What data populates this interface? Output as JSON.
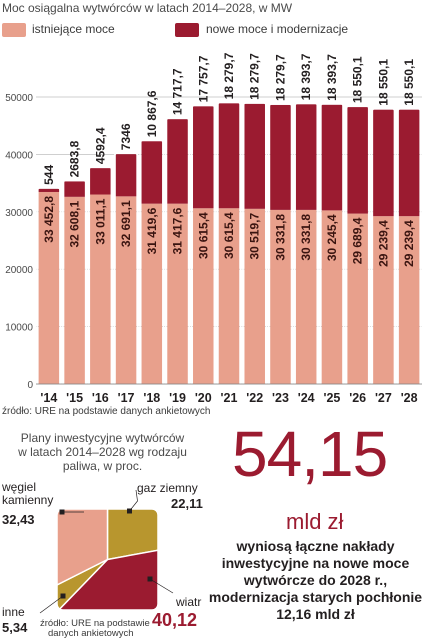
{
  "chart_data": [
    {
      "type": "bar",
      "title": "Moc osiągalna wytwórców w latach 2014–2028, w MW",
      "categories": [
        "'14",
        "'15",
        "'16",
        "'17",
        "'18",
        "'19",
        "'20",
        "'21",
        "'22",
        "'23",
        "'24",
        "'25",
        "'26",
        "'27",
        "'28"
      ],
      "series": [
        {
          "name": "istniejące moce",
          "color": "#e8a08c",
          "values": [
            33452.8,
            32608.1,
            33011.1,
            32691.1,
            31419.6,
            31417.6,
            30615.4,
            30615.4,
            30519.7,
            30331.8,
            30331.8,
            30245.4,
            29689.4,
            29239.4,
            29239.4
          ],
          "labels": [
            "33 452,8",
            "32 608,1",
            "33 011,1",
            "32 691,1",
            "31 419,6",
            "31 417,6",
            "30 615,4",
            "30 615,4",
            "30 519,7",
            "30 331,8",
            "30 331,8",
            "30 245,4",
            "29 689,4",
            "29 239,4",
            "29 239,4"
          ]
        },
        {
          "name": "nowe moce i modernizacje",
          "color": "#9b1b30",
          "values": [
            544,
            2683.8,
            4592.4,
            7346,
            10867.6,
            14717.7,
            17757.7,
            18279.7,
            18279.7,
            18279.7,
            18393.7,
            18393.7,
            18550.1,
            18550.1,
            18550.1
          ],
          "labels": [
            "544",
            "2683,8",
            "4592,4",
            "7346",
            "10 867,6",
            "14 717,7",
            "17 757,7",
            "18 279,7",
            "18 279,7",
            "18 279,7",
            "18 393,7",
            "18 393,7",
            "18 550,1",
            "18 550,1",
            "18 550,1"
          ]
        }
      ],
      "yticks": [
        "0",
        "10000",
        "20000",
        "30000",
        "40000",
        "50000"
      ],
      "ylim": [
        0,
        50000
      ],
      "grid": true,
      "legend_position": "top"
    },
    {
      "type": "pie",
      "title": "Plany inwestycyjne wytwórców w latach 2014–2028 wg rodzaju paliwa, w proc.",
      "slices": [
        {
          "label": "gaz ziemny",
          "value": 22.11,
          "value_label": "22,11",
          "color": "#b8962e"
        },
        {
          "label": "wiatr",
          "value": 40.12,
          "value_label": "40,12",
          "color": "#9b1b30"
        },
        {
          "label": "inne",
          "value": 5.34,
          "value_label": "5,34",
          "color": "#b8962e"
        },
        {
          "label": "węgiel kamienny",
          "value": 32.43,
          "value_label": "32,43",
          "color": "#e8a08c"
        }
      ]
    }
  ],
  "source_bar": "źródło: URE na podstawie danych ankietowych",
  "source_pie_1": "źródło: URE na podstawie",
  "source_pie_2": "danych ankietowych",
  "highlight": {
    "value": "54,15",
    "unit": "mld zł",
    "note": "wyniosą łączne nakłady inwestycyjne na nowe moce wytwórcze do 2028 r., modernizacja starych pochłonie 12,16 mld zł"
  },
  "pie_labels": {
    "coal_line1": "węgiel",
    "coal_line2": "kamienny",
    "gas": "gaz ziemny",
    "wind": "wiatr",
    "other": "inne"
  }
}
